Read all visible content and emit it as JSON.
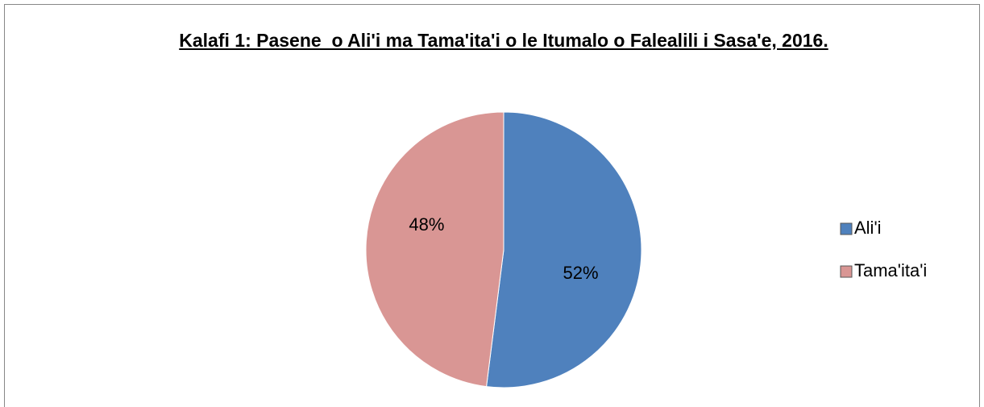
{
  "chart_data": {
    "type": "pie",
    "title": "Kalafi 1: Pasene  o Ali'i ma Tama'ita'i o le Itumalo o Falealili i Sasa'e, 2016.",
    "categories": [
      "Ali'i",
      "Tama'ita'i"
    ],
    "values": [
      52,
      48
    ],
    "value_labels": [
      "52%",
      "48%"
    ],
    "colors": [
      "#4f81bd",
      "#d99694"
    ],
    "legend": "right"
  }
}
